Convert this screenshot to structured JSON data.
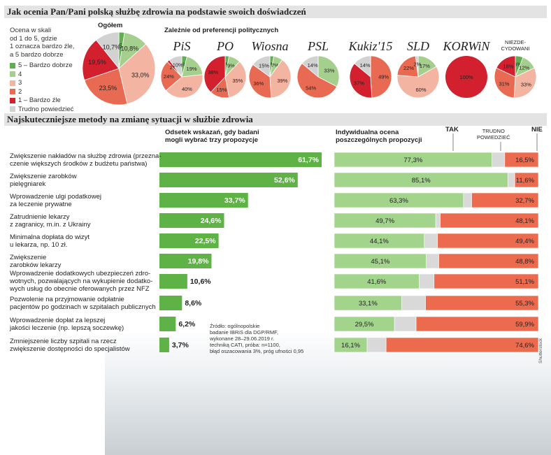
{
  "section1": {
    "title": "Jak ocenia Pan/Pani polską służbę zdrowia na podstawie swoich doświadczeń",
    "legend_intro": [
      "Ocena w skali",
      "od 1 do 5, gdzie",
      "1 oznacza bardzo źle,",
      "a 5 bardzo dobrze"
    ],
    "legend": [
      {
        "label": "5 – Bardzo dobrze",
        "color": "#5fae4f"
      },
      {
        "label": "4",
        "color": "#a4cf8c"
      },
      {
        "label": "3",
        "color": "#f3b5a2"
      },
      {
        "label": "2",
        "color": "#e86a52"
      },
      {
        "label": "1 – Bardzo źle",
        "color": "#d3202e"
      },
      {
        "label": "Trudno powiedzieć",
        "color": "#d2d2d2"
      }
    ],
    "overall_label": "Ogółem",
    "by_party_label": "Zależnie od preferencji politycznych"
  },
  "section2": {
    "title": "Najskuteczniejsze metody na zmianę sytuacji w służbie zdrowia",
    "left_header": [
      "Odsetek wskazań, gdy badani",
      "mogli wybrać trzy propozycje"
    ],
    "right_header": [
      "Indywidualna ocena",
      "poszczególnych propozycji"
    ],
    "right_labels": {
      "yes": "TAK",
      "unsure": [
        "TRUDNO",
        "POWIEDZIEĆ"
      ],
      "no": "NIE"
    },
    "source": [
      "Źródło: ogólnopolskie",
      "badanie IBRiS dla DGP/RMF,",
      "wykonane 28–29.06.2019 r.",
      "techniką CATI, próba: n=1100,",
      "błąd oszacowania 3%, próg ufności 0,95"
    ],
    "credit": "Shutterstock"
  },
  "chart_data": [
    {
      "type": "pie",
      "title": "Ogółem",
      "categories": [
        "5 – Bardzo dobrze",
        "4",
        "3",
        "2",
        "1 – Bardzo źle",
        "Trudno powiedzieć"
      ],
      "values": [
        2.5,
        10.8,
        33.0,
        23.5,
        19.5,
        10.7
      ],
      "labels": [
        "2,5%",
        "10,8%",
        "33,0%",
        "23,5%",
        "19,5%",
        "10,7%"
      ],
      "colors": [
        "#5fae4f",
        "#a4cf8c",
        "#f3b5a2",
        "#e86a52",
        "#d3202e",
        "#d2d2d2"
      ]
    },
    {
      "type": "pie",
      "title": "Zależnie od preferencji politycznych",
      "series": [
        {
          "name": "PiS",
          "values": [
            4,
            19,
            40,
            24,
            2,
            10
          ],
          "labels": [
            "4%",
            "19%",
            "40%",
            "24%",
            "2%",
            "10%"
          ]
        },
        {
          "name": "PO",
          "values": [
            3,
            9,
            35,
            15,
            38,
            0
          ],
          "labels": [
            "3%",
            "9%",
            "35%",
            "15%",
            "38%",
            ""
          ]
        },
        {
          "name": "Wiosna",
          "values": [
            3,
            7,
            39,
            36,
            0,
            15
          ],
          "labels": [
            "3%",
            "7%",
            "39%",
            "36%",
            "",
            "15%"
          ]
        },
        {
          "name": "PSL",
          "values": [
            0,
            33,
            0,
            54,
            0,
            14
          ],
          "labels": [
            "",
            "33%",
            "",
            "54%",
            "",
            "14%"
          ]
        },
        {
          "name": "Kukiz'15",
          "values": [
            0,
            0,
            0,
            49,
            37,
            14
          ],
          "labels": [
            "",
            "",
            "",
            "49%",
            "37%",
            "14%"
          ]
        },
        {
          "name": "SLD",
          "values": [
            0,
            17,
            60,
            22,
            0,
            2
          ],
          "labels": [
            "",
            "17%",
            "60%",
            "22%",
            "",
            "2%"
          ]
        },
        {
          "name": "KORWiN",
          "values": [
            0,
            0,
            0,
            0,
            100,
            0
          ],
          "labels": [
            "",
            "",
            "",
            "",
            "100%",
            ""
          ]
        },
        {
          "name": "NIEZDE-CYDOWANI",
          "values": [
            6,
            12,
            33,
            31,
            18,
            0
          ],
          "labels": [
            "6%",
            "12%",
            "33%",
            "31%",
            "18%",
            ""
          ]
        }
      ]
    },
    {
      "type": "bar",
      "title": "Odsetek wskazań, gdy badani mogli wybrać trzy propozycje",
      "categories": [
        "Zwiększenie nakładów na służbę zdrowia (przezna-czenie większych środków z budżetu państwa)",
        "Zwiększenie zarobków pielęgniarek",
        "Wprowadzenie ulgi podatkowej za leczenie prywatne",
        "Zatrudnienie lekarzy z zagranicy, m.in. z Ukrainy",
        "Minimalna dopłata do wizyt u lekarza, np. 10 zł.",
        "Zwiększenie zarobków lekarzy",
        "Wprowadzenie dodatkowych ubezpieczeń zdro-wotnych, pozwalających na wykupienie dodatko-wych usług do obecnie oferowanych przez NFZ",
        "Pozwolenie na przyjmowanie odpłatnie pacjentów po godzinach w szpitalach publicznych",
        "Wprowadzenie dopłat za lepszej jakości leczenie (np. lepszą soczewkę)",
        "Zmniejszenie liczby szpitali na rzecz zwiększenie dostępności do specjalistów"
      ],
      "category_lines": [
        [
          "Zwiększenie nakładów na służbę zdrowia (przezna-",
          "czenie większych środków z budżetu państwa)"
        ],
        [
          "Zwiększenie zarobków",
          "pielęgniarek"
        ],
        [
          "Wprowadzenie ulgi podatkowej",
          "za leczenie prywatne"
        ],
        [
          "Zatrudnienie lekarzy",
          "z zagranicy, m.in. z Ukrainy"
        ],
        [
          "Minimalna dopłata do wizyt",
          "u lekarza, np. 10 zł."
        ],
        [
          "Zwiększenie",
          "zarobków lekarzy"
        ],
        [
          "Wprowadzenie dodatkowych ubezpieczeń zdro-",
          "wotnych, pozwalających na wykupienie dodatko-",
          "wych usług do obecnie oferowanych przez NFZ"
        ],
        [
          "Pozwolenie na przyjmowanie odpłatnie",
          "pacjentów po godzinach w szpitalach publicznych"
        ],
        [
          "Wprowadzenie dopłat za lepszej",
          "jakości leczenie (np. lepszą soczewkę)"
        ],
        [
          "Zmniejszenie liczby szpitali na rzecz",
          "zwiększenie dostępności do specjalistów"
        ]
      ],
      "values": [
        61.7,
        52.6,
        33.7,
        24.6,
        22.5,
        19.8,
        10.6,
        8.6,
        6.2,
        3.7
      ],
      "labels": [
        "61,7%",
        "52,6%",
        "33,7%",
        "24,6%",
        "22,5%",
        "19,8%",
        "10,6%",
        "8,6%",
        "6,2%",
        "3,7%"
      ],
      "color": "#5fb246"
    },
    {
      "type": "bar",
      "title": "Indywidualna ocena poszczególnych propozycji",
      "stacked": true,
      "series": [
        {
          "name": "TAK",
          "color": "#a3d48c",
          "values": [
            77.3,
            85.1,
            63.3,
            49.7,
            44.1,
            45.1,
            41.6,
            33.1,
            29.5,
            16.1
          ],
          "labels": [
            "77,3%",
            "85,1%",
            "63,3%",
            "49,7%",
            "44,1%",
            "45,1%",
            "41,6%",
            "33,1%",
            "29,5%",
            "16,1%"
          ]
        },
        {
          "name": "TRUDNO POWIEDZIEĆ",
          "color": "#d9d9d9",
          "values": [
            6.2,
            3.3,
            4.0,
            2.2,
            6.5,
            6.1,
            7.3,
            11.6,
            10.6,
            9.3
          ]
        },
        {
          "name": "NIE",
          "color": "#ec6b4f",
          "values": [
            16.5,
            11.6,
            32.7,
            48.1,
            49.4,
            48.8,
            51.1,
            55.3,
            59.9,
            74.6
          ],
          "labels": [
            "16,5%",
            "11,6%",
            "32,7%",
            "48,1%",
            "49,4%",
            "48,8%",
            "51,1%",
            "55,3%",
            "59,9%",
            "74,6%"
          ]
        }
      ]
    }
  ]
}
